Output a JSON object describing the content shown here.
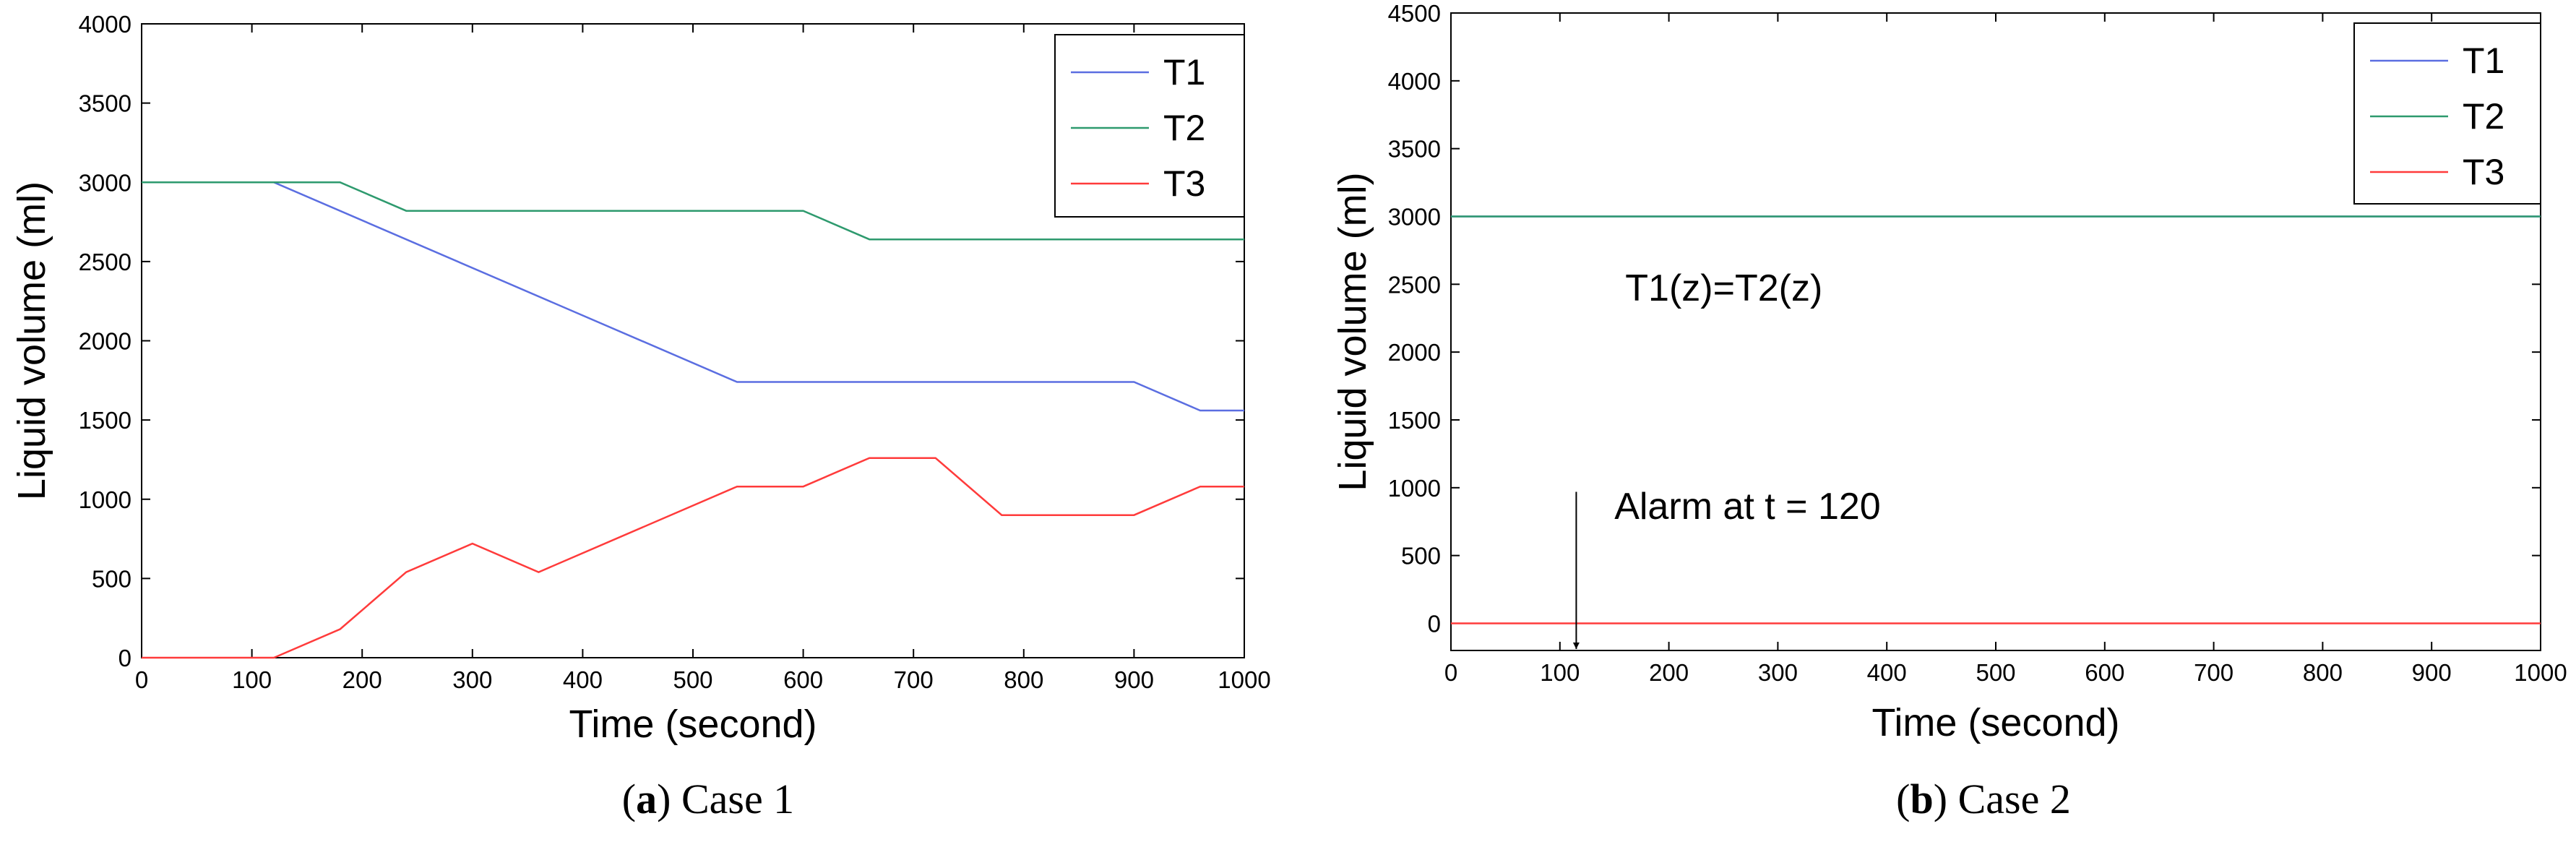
{
  "chart_data": [
    {
      "type": "line",
      "caption": {
        "open": "(",
        "letter": "a",
        "close": ")",
        "text": " Case 1"
      },
      "xlabel": "Time (second)",
      "ylabel": "Liquid volume (ml)",
      "xlim": [
        0,
        1000
      ],
      "ylim": [
        0,
        4000
      ],
      "xticks": [
        0,
        100,
        200,
        300,
        400,
        500,
        600,
        700,
        800,
        900,
        1000
      ],
      "yticks": [
        0,
        500,
        1000,
        1500,
        2000,
        2500,
        3000,
        3500,
        4000
      ],
      "grid": false,
      "legend_position": "top-right",
      "series": [
        {
          "name": "T1",
          "color": "#5b6ee1",
          "x": [
            0,
            120,
            540,
            900,
            960,
            1000
          ],
          "y": [
            3000,
            3000,
            1740,
            1740,
            1560,
            1560
          ]
        },
        {
          "name": "T2",
          "color": "#2e9a6e",
          "x": [
            0,
            180,
            240,
            600,
            660,
            1000
          ],
          "y": [
            3000,
            3000,
            2820,
            2820,
            2640,
            2640
          ]
        },
        {
          "name": "T3",
          "color": "#ff3b3b",
          "x": [
            0,
            120,
            180,
            240,
            300,
            360,
            540,
            600,
            660,
            720,
            780,
            900,
            960,
            1000
          ],
          "y": [
            0,
            0,
            180,
            540,
            720,
            540,
            1080,
            1080,
            1260,
            1260,
            900,
            900,
            1080,
            1080
          ]
        }
      ],
      "annotations": []
    },
    {
      "type": "line",
      "caption": {
        "open": "(",
        "letter": "b",
        "close": ")",
        "text": " Case 2"
      },
      "xlabel": "Time (second)",
      "ylabel": "Liquid volume (ml)",
      "xlim": [
        0,
        1000
      ],
      "ylim": [
        -200,
        4500
      ],
      "xticks": [
        0,
        100,
        200,
        300,
        400,
        500,
        600,
        700,
        800,
        900,
        1000
      ],
      "yticks": [
        0,
        500,
        1000,
        1500,
        2000,
        2500,
        3000,
        3500,
        4000,
        4500
      ],
      "grid": false,
      "legend_position": "top-right",
      "series": [
        {
          "name": "T1",
          "color": "#5b6ee1",
          "x": [
            0,
            1000
          ],
          "y": [
            3000,
            3000
          ]
        },
        {
          "name": "T2",
          "color": "#2e9a6e",
          "x": [
            0,
            1000
          ],
          "y": [
            3000,
            3000
          ]
        },
        {
          "name": "T3",
          "color": "#ff3b3b",
          "x": [
            0,
            1000
          ],
          "y": [
            0,
            0
          ]
        }
      ],
      "annotations": [
        {
          "text": "T1(z)=T2(z)",
          "x": 160,
          "y": 2380,
          "arrow": false
        },
        {
          "text": "Alarm at t = 120",
          "x": 150,
          "y": 770,
          "arrow": true,
          "arrow_from": [
            115,
            970
          ],
          "arrow_to": [
            115,
            -200
          ]
        }
      ]
    }
  ]
}
